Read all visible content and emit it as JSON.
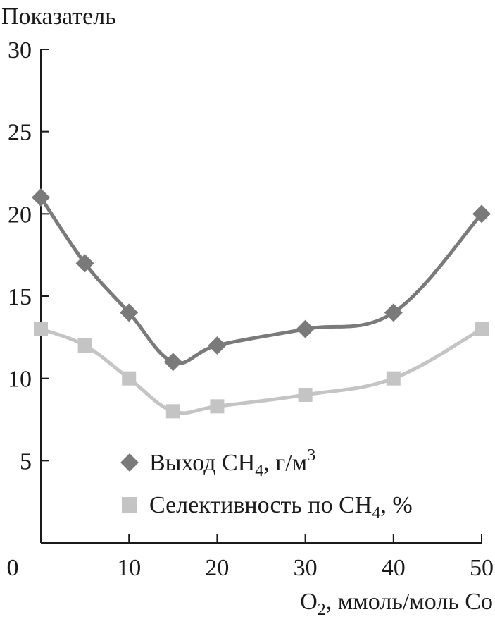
{
  "chart_data": {
    "type": "line",
    "ylabel": "Показатель",
    "xlabel": {
      "pre": "O",
      "sub": "2",
      "post": ", ммоль/моль Co"
    },
    "xlim": [
      0,
      50
    ],
    "ylim": [
      0,
      30
    ],
    "x_ticks": [
      0,
      10,
      20,
      30,
      40,
      50
    ],
    "y_ticks": [
      5,
      10,
      15,
      20,
      25,
      30
    ],
    "grid": false,
    "legend_position": "bottom-right",
    "series": [
      {
        "name": "Выход CH4, г/м3",
        "legend_parts": {
          "pre": "Выход CH",
          "sub": "4",
          "mid": ", г/м",
          "sup": "3",
          "post": ""
        },
        "marker": "diamond",
        "color": "#7a7a7a",
        "x": [
          0,
          5,
          10,
          15,
          20,
          30,
          40,
          50
        ],
        "y": [
          21,
          17,
          14,
          11,
          12,
          13,
          14,
          20
        ]
      },
      {
        "name": "Селективность по CH4, %",
        "legend_parts": {
          "pre": "Селективность по CH",
          "sub": "4",
          "mid": ", %",
          "sup": "",
          "post": ""
        },
        "marker": "square",
        "color": "#c4c4c4",
        "x": [
          0,
          5,
          10,
          15,
          20,
          30,
          40,
          50
        ],
        "y": [
          13,
          12,
          10,
          8,
          8.3,
          9,
          10,
          13
        ]
      }
    ]
  }
}
